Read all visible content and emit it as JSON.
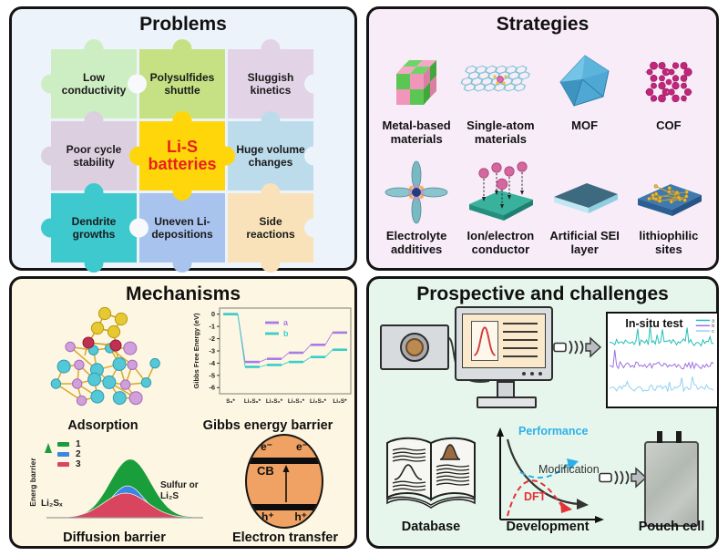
{
  "problems": {
    "title": "Problems",
    "panel_bg": "#edf3fb",
    "center_text_color": "#e82018",
    "pieces": [
      {
        "label": "Low conductivity",
        "bg": "#cdeec2"
      },
      {
        "label": "Polysulfides shuttle",
        "bg": "#c5e183"
      },
      {
        "label": "Sluggish kinetics",
        "bg": "#e2d3e6"
      },
      {
        "label": "Poor cycle stability",
        "bg": "#dcd0e0"
      },
      {
        "label": "Li-S batteries",
        "bg": "#ffd60a"
      },
      {
        "label": "Huge volume changes",
        "bg": "#bcdcec"
      },
      {
        "label": "Dendrite growths",
        "bg": "#3ec9ce"
      },
      {
        "label": "Uneven Li-depositions",
        "bg": "#a8c3ee"
      },
      {
        "label": "Side reactions",
        "bg": "#f9e2ba"
      }
    ]
  },
  "strategies": {
    "title": "Strategies",
    "panel_bg": "#f8ecf8",
    "items": [
      {
        "label": "Metal-based materials",
        "icon": "metal-cube-icon"
      },
      {
        "label": "Single-atom materials",
        "icon": "graphene-sheet-icon"
      },
      {
        "label": "MOF",
        "icon": "polyhedron-icon"
      },
      {
        "label": "COF",
        "icon": "ring-cluster-icon"
      },
      {
        "label": "Electrolyte additives",
        "icon": "additive-cross-icon"
      },
      {
        "label": "Ion/electron conductor",
        "icon": "conductor-slab-icon"
      },
      {
        "label": "Artificial SEI layer",
        "icon": "sei-slab-icon"
      },
      {
        "label": "lithiophilic sites",
        "icon": "lithiophilic-slab-icon"
      }
    ]
  },
  "mechanisms": {
    "title": "Mechanisms",
    "panel_bg": "#fdf6e2",
    "adsorption_label": "Adsorption",
    "diffusion": {
      "label": "Diffusion barrier",
      "ylabel": "Energ barrier",
      "legend": [
        {
          "name": "1",
          "color": "#1a9e3c"
        },
        {
          "name": "2",
          "color": "#3a86e0"
        },
        {
          "name": "3",
          "color": "#d9455f"
        }
      ],
      "left_label": "Li₂Sₓ",
      "right_label": "Sulfur or Li₂S"
    },
    "electron": {
      "label": "Electron transfer",
      "top_left": "e⁻",
      "top_right": "e⁻",
      "band": "CB",
      "bottom_left": "h⁺",
      "bottom_right": "h⁺",
      "ellipse_color": "#efa263"
    }
  },
  "chart_data": {
    "type": "line",
    "title": "Gibbs energy barrier",
    "ylabel": "Gibbs Free Energy (eV)",
    "categories": [
      "S₈*",
      "Li₂S₈*",
      "Li₂S₆*",
      "Li₂S₄*",
      "Li₂S₂*",
      "Li₂S*"
    ],
    "series": [
      {
        "name": "a",
        "color": "#a87ce6",
        "values": [
          0,
          -3.9,
          -3.65,
          -3.15,
          -2.5,
          -1.5
        ]
      },
      {
        "name": "b",
        "color": "#38cfc8",
        "values": [
          0,
          -4.3,
          -4.15,
          -3.9,
          -3.5,
          -2.9
        ]
      }
    ],
    "ylim": [
      -6.5,
      0.5
    ],
    "yticks": [
      0,
      -1,
      -2,
      -3,
      -4,
      -5,
      -6
    ],
    "legend_position": "upper-center-left",
    "grid": false
  },
  "prospective": {
    "title": "Prospective and challenges",
    "panel_bg": "#e6f6ed",
    "insitu": {
      "title": "In-situ test",
      "legend": [
        {
          "name": "a",
          "color": "#1fbfb4"
        },
        {
          "name": "b",
          "color": "#9a6ee0"
        },
        {
          "name": "c",
          "color": "#8fd0f0"
        }
      ]
    },
    "database_label": "Database",
    "development": {
      "label": "Development",
      "curves": [
        {
          "name": "Performance",
          "color": "#2bb1ea",
          "style": "dashed"
        },
        {
          "name": "Modification",
          "color": "#333333",
          "style": "solid"
        },
        {
          "name": "DFT",
          "color": "#e33333",
          "style": "dashed"
        }
      ]
    },
    "pouch_label": "Pouch cell"
  }
}
